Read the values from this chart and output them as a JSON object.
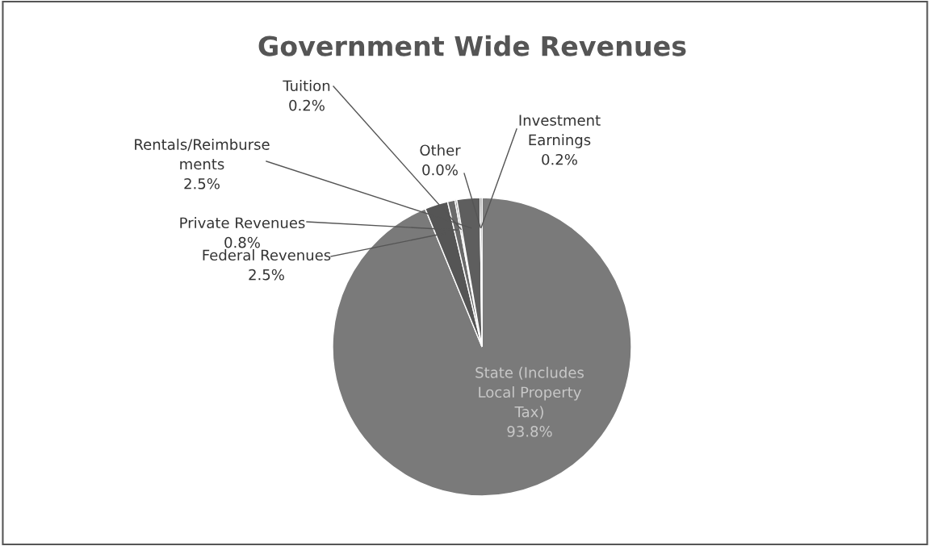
{
  "chart_data": {
    "type": "pie",
    "title": "Government Wide Revenues",
    "categories": [
      "State (Includes\nLocal Property\nTax)",
      "Federal Revenues",
      "Private Revenues",
      "Tuition",
      "Rentals/Reimburse\nments",
      "Other",
      "Investment\nEarnings"
    ],
    "values": [
      93.8,
      2.5,
      0.8,
      0.2,
      2.5,
      0.0,
      0.2
    ],
    "value_labels": [
      "93.8%",
      "2.5%",
      "0.8%",
      "0.2%",
      "2.5%",
      "0.0%",
      "0.2%"
    ],
    "colors": [
      "#7a7a7a",
      "#555555",
      "#6a6a6a",
      "#8a8a8a",
      "#5e5e5e",
      "#777777",
      "#666666"
    ],
    "data_labels": true,
    "legend": false
  }
}
